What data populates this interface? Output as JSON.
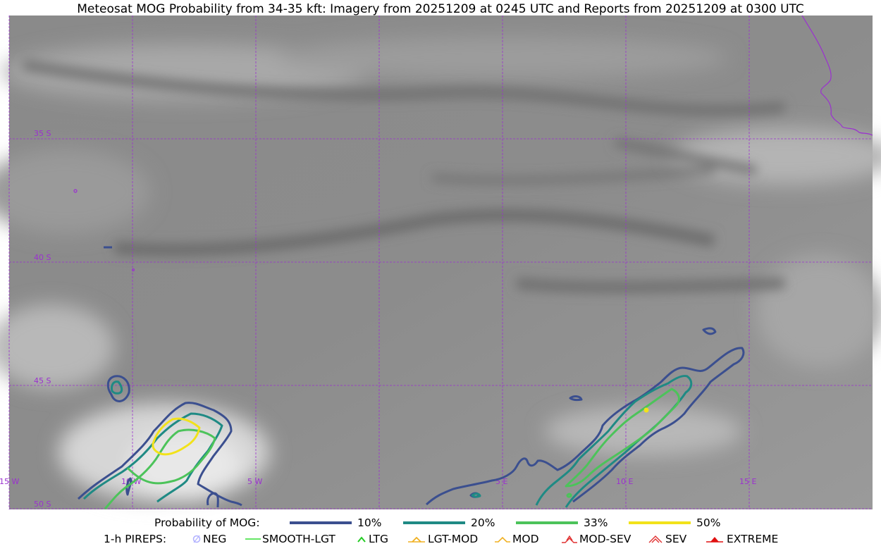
{
  "title": "Meteosat MOG Probability from 34-35 kft: Imagery from 20251209 at 0245 UTC and Reports from 20251209 at 0300 UTC",
  "grid": {
    "lat_labels": [
      "35 S",
      "40 S",
      "45 S",
      "50 S"
    ],
    "lon_labels": [
      "15 W",
      "10 W",
      "5 W",
      "5 E",
      "10 E",
      "15 E"
    ]
  },
  "legend": {
    "probability_title": "Probability of MOG:",
    "levels": [
      {
        "label": "10%",
        "color": "#3b4f8f"
      },
      {
        "label": "20%",
        "color": "#1f8a84"
      },
      {
        "label": "33%",
        "color": "#4cc35a"
      },
      {
        "label": "50%",
        "color": "#f2e21a"
      }
    ],
    "pireps_title": "1-h PIREPS:",
    "pireps": [
      {
        "label": "NEG",
        "icon": "neg-circle-icon",
        "color": "#b0b0ff"
      },
      {
        "label": "SMOOTH-LGT",
        "icon": "line-icon",
        "color": "#33dd33"
      },
      {
        "label": "LTG",
        "icon": "caret-icon",
        "color": "#22cc22"
      },
      {
        "label": "LGT-MOD",
        "icon": "lgt-mod-icon",
        "color": "#f0b020"
      },
      {
        "label": "MOD",
        "icon": "caret-icon",
        "color": "#f0b020"
      },
      {
        "label": "MOD-SEV",
        "icon": "mod-sev-icon",
        "color": "#e03030"
      },
      {
        "label": "SEV",
        "icon": "sev-icon",
        "color": "#e03030"
      },
      {
        "label": "EXTREME",
        "icon": "extreme-icon",
        "color": "#e01010"
      }
    ]
  },
  "colors": {
    "grid": "#9b30d0",
    "coast": "#9b30d0",
    "background_light": "#c8c8c8",
    "background_dark": "#6e6e6e"
  }
}
